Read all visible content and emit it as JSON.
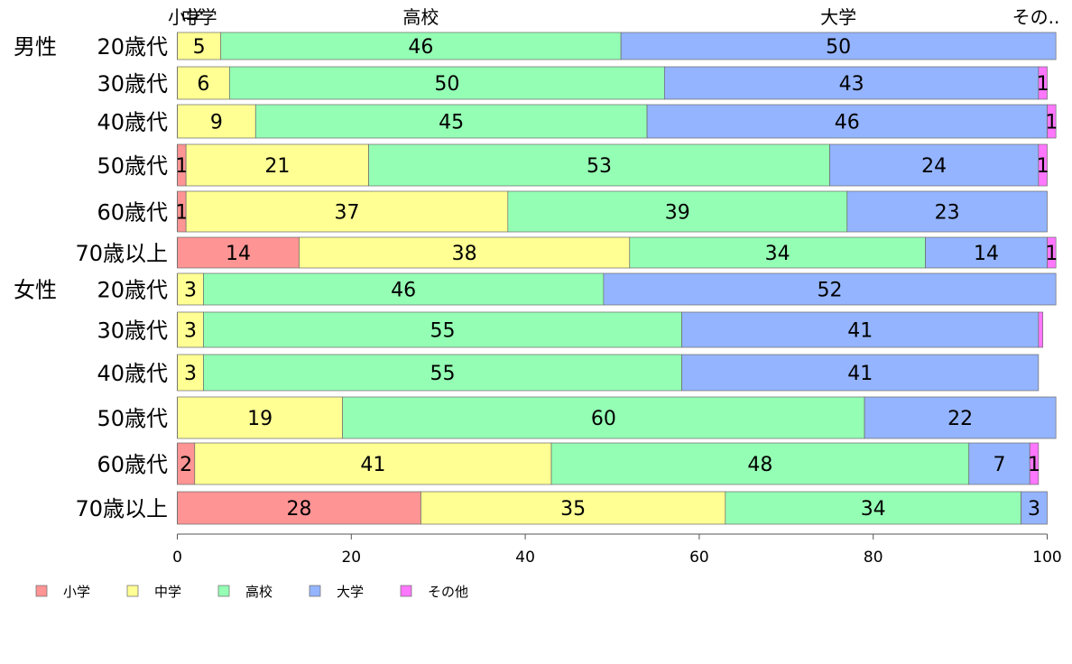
{
  "chart_data": {
    "type": "bar",
    "orientation": "horizontal",
    "stacked": true,
    "group_labels": [
      "男性",
      "女性"
    ],
    "categories": [
      "20歳代",
      "30歳代",
      "40歳代",
      "50歳代",
      "60歳代",
      "70歳以上",
      "20歳代",
      "30歳代",
      "40歳代",
      "50歳代",
      "60歳代",
      "70歳以上"
    ],
    "category_groups": [
      0,
      0,
      0,
      0,
      0,
      0,
      1,
      1,
      1,
      1,
      1,
      1
    ],
    "series": [
      {
        "name": "小学",
        "color": "#ff9494",
        "values": [
          0,
          0,
          0,
          1,
          1,
          14,
          0,
          0,
          0,
          0,
          2,
          28
        ]
      },
      {
        "name": "中学",
        "color": "#ffff94",
        "values": [
          5,
          6,
          9,
          21,
          37,
          38,
          3,
          3,
          3,
          19,
          41,
          35
        ]
      },
      {
        "name": "高校",
        "color": "#94ffb4",
        "values": [
          46,
          50,
          45,
          53,
          39,
          34,
          46,
          55,
          55,
          60,
          48,
          34
        ]
      },
      {
        "name": "大学",
        "color": "#94b4ff",
        "values": [
          50,
          43,
          46,
          24,
          23,
          14,
          52,
          41,
          41,
          22,
          7,
          3
        ]
      },
      {
        "name": "その他",
        "color": "#ff77ff",
        "values": [
          0,
          1,
          1,
          1,
          0,
          1,
          0,
          0.5,
          0,
          0,
          1,
          0
        ]
      }
    ],
    "labels": [
      [
        "",
        "",
        "",
        "1",
        "1",
        "14",
        "",
        "",
        "",
        "",
        "2",
        "28"
      ],
      [
        "5",
        "6",
        "9",
        "21",
        "37",
        "38",
        "3",
        "3",
        "3",
        "19",
        "41",
        "35"
      ],
      [
        "46",
        "50",
        "45",
        "53",
        "39",
        "34",
        "46",
        "55",
        "55",
        "60",
        "48",
        "34"
      ],
      [
        "50",
        "43",
        "46",
        "24",
        "23",
        "14",
        "52",
        "41",
        "41",
        "22",
        "7",
        "3"
      ],
      [
        "",
        "1",
        "1",
        "1",
        "",
        "1",
        "",
        "",
        "",
        "",
        "1",
        ""
      ]
    ],
    "top_labels": [
      "小学",
      "中学",
      "高校",
      "大学",
      "その.."
    ],
    "xlim": [
      0,
      100
    ],
    "xticks": [
      "0",
      "20",
      "40",
      "60",
      "80",
      "100"
    ],
    "grid": false,
    "legend_position": "bottom-left"
  }
}
